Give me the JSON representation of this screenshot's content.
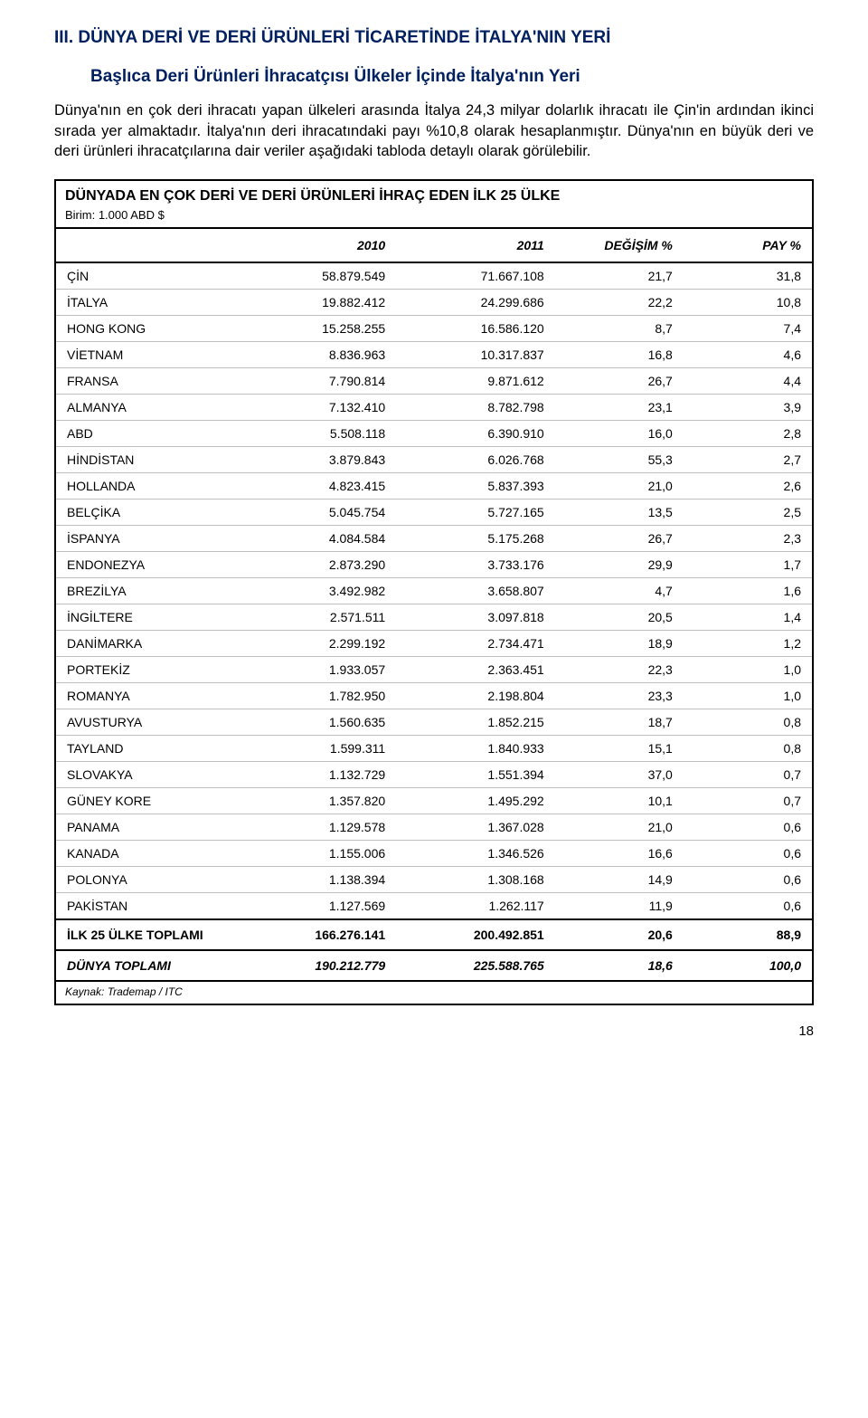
{
  "heading": "III. DÜNYA DERİ VE DERİ ÜRÜNLERİ TİCARETİNDE İTALYA'NIN YERİ",
  "subheading": "Başlıca Deri Ürünleri İhracatçısı Ülkeler İçinde İtalya'nın Yeri",
  "paragraph": "Dünya'nın en çok deri ihracatı yapan ülkeleri arasında İtalya 24,3 milyar dolarlık ihracatı ile Çin'in ardından ikinci sırada yer almaktadır. İtalya'nın deri ihracatındaki payı %10,8 olarak hesaplanmıştır. Dünya'nın en büyük deri ve deri ürünleri ihracatçılarına dair veriler aşağıdaki tabloda detaylı olarak görülebilir.",
  "table": {
    "title": "DÜNYADA EN ÇOK DERİ VE DERİ ÜRÜNLERİ İHRAÇ EDEN İLK 25 ÜLKE",
    "unit": "Birim: 1.000 ABD $",
    "columns": [
      "",
      "2010",
      "2011",
      "DEĞİŞİM %",
      "PAY %"
    ],
    "rows": [
      [
        "ÇİN",
        "58.879.549",
        "71.667.108",
        "21,7",
        "31,8"
      ],
      [
        "İTALYA",
        "19.882.412",
        "24.299.686",
        "22,2",
        "10,8"
      ],
      [
        "HONG KONG",
        "15.258.255",
        "16.586.120",
        "8,7",
        "7,4"
      ],
      [
        "VİETNAM",
        "8.836.963",
        "10.317.837",
        "16,8",
        "4,6"
      ],
      [
        "FRANSA",
        "7.790.814",
        "9.871.612",
        "26,7",
        "4,4"
      ],
      [
        "ALMANYA",
        "7.132.410",
        "8.782.798",
        "23,1",
        "3,9"
      ],
      [
        "ABD",
        "5.508.118",
        "6.390.910",
        "16,0",
        "2,8"
      ],
      [
        "HİNDİSTAN",
        "3.879.843",
        "6.026.768",
        "55,3",
        "2,7"
      ],
      [
        "HOLLANDA",
        "4.823.415",
        "5.837.393",
        "21,0",
        "2,6"
      ],
      [
        "BELÇİKA",
        "5.045.754",
        "5.727.165",
        "13,5",
        "2,5"
      ],
      [
        "İSPANYA",
        "4.084.584",
        "5.175.268",
        "26,7",
        "2,3"
      ],
      [
        "ENDONEZYA",
        "2.873.290",
        "3.733.176",
        "29,9",
        "1,7"
      ],
      [
        "BREZİLYA",
        "3.492.982",
        "3.658.807",
        "4,7",
        "1,6"
      ],
      [
        "İNGİLTERE",
        "2.571.511",
        "3.097.818",
        "20,5",
        "1,4"
      ],
      [
        "DANİMARKA",
        "2.299.192",
        "2.734.471",
        "18,9",
        "1,2"
      ],
      [
        "PORTEKİZ",
        "1.933.057",
        "2.363.451",
        "22,3",
        "1,0"
      ],
      [
        "ROMANYA",
        "1.782.950",
        "2.198.804",
        "23,3",
        "1,0"
      ],
      [
        "AVUSTURYA",
        "1.560.635",
        "1.852.215",
        "18,7",
        "0,8"
      ],
      [
        "TAYLAND",
        "1.599.311",
        "1.840.933",
        "15,1",
        "0,8"
      ],
      [
        "SLOVAKYA",
        "1.132.729",
        "1.551.394",
        "37,0",
        "0,7"
      ],
      [
        "GÜNEY KORE",
        "1.357.820",
        "1.495.292",
        "10,1",
        "0,7"
      ],
      [
        "PANAMA",
        "1.129.578",
        "1.367.028",
        "21,0",
        "0,6"
      ],
      [
        "KANADA",
        "1.155.006",
        "1.346.526",
        "16,6",
        "0,6"
      ],
      [
        "POLONYA",
        "1.138.394",
        "1.308.168",
        "14,9",
        "0,6"
      ],
      [
        "PAKİSTAN",
        "1.127.569",
        "1.262.117",
        "11,9",
        "0,6"
      ]
    ],
    "total_row": [
      "İLK 25 ÜLKE TOPLAMI",
      "166.276.141",
      "200.492.851",
      "20,6",
      "88,9"
    ],
    "grand_row": [
      "DÜNYA TOPLAMI",
      "190.212.779",
      "225.588.765",
      "18,6",
      "100,0"
    ],
    "source": "Kaynak: Trademap / ITC"
  },
  "pagenum": "18"
}
